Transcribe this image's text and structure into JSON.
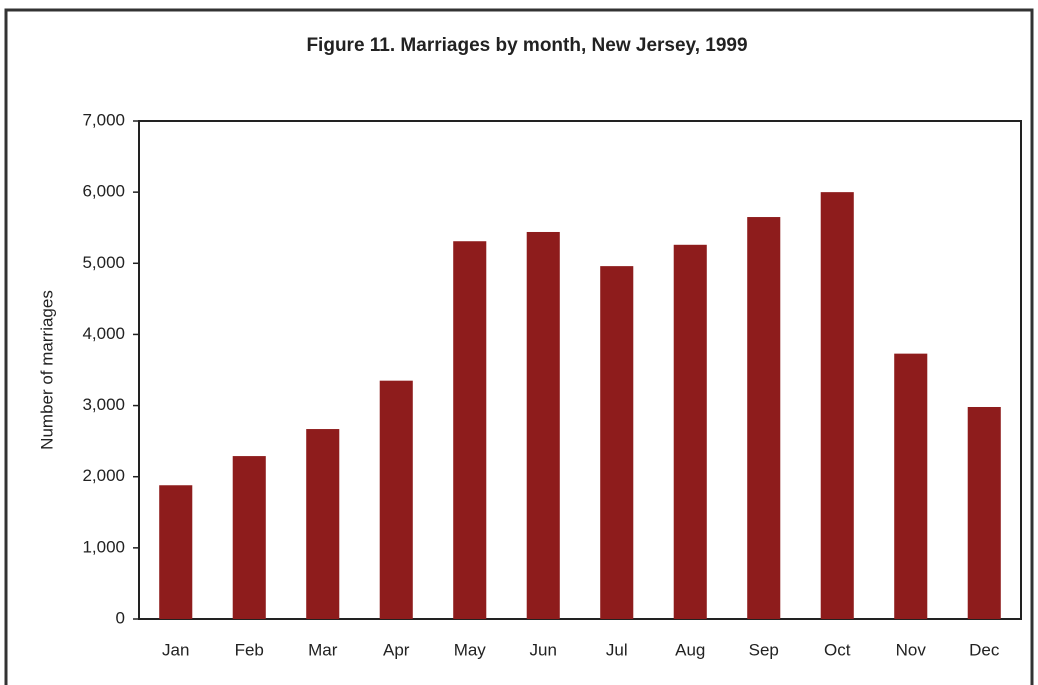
{
  "chart_data": {
    "type": "bar",
    "title": "Figure 11. Marriages by month, New Jersey, 1999",
    "y_label": "Number of marriages",
    "categories": [
      "Jan",
      "Feb",
      "Mar",
      "Apr",
      "May",
      "Jun",
      "Jul",
      "Aug",
      "Sep",
      "Oct",
      "Nov",
      "Dec"
    ],
    "values": [
      1880,
      2290,
      2670,
      3350,
      5310,
      5440,
      4960,
      5260,
      5650,
      6000,
      3730,
      2980
    ],
    "color": "#8e1c1c",
    "ylim": [
      0,
      7000
    ],
    "yticks": [
      0,
      {
        "value": 1000,
        "label": "1,000"
      },
      {
        "value": 2000,
        "label": "2,000"
      },
      {
        "value": 3000,
        "label": "3,000"
      },
      {
        "value": 4000,
        "label": "4,000"
      },
      {
        "value": 5000,
        "label": "5,000"
      },
      {
        "value": 6000,
        "label": "6,000"
      },
      {
        "value": 7000,
        "label": "7,000"
      }
    ],
    "grid": false
  }
}
